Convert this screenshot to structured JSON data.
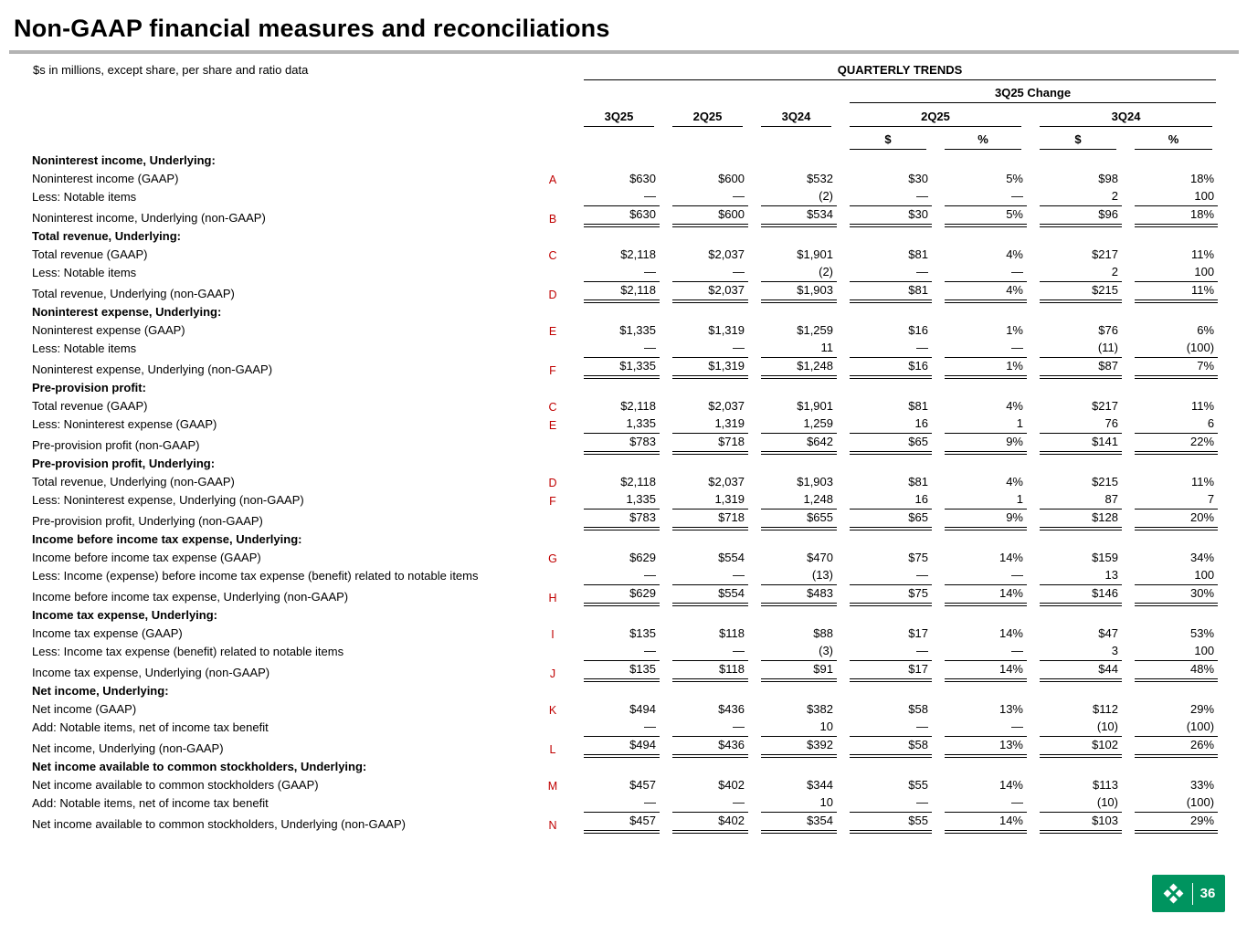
{
  "slide": {
    "title": "Non-GAAP financial measures and reconciliations",
    "subtitle": "$s in millions, except share, per share and ratio data",
    "page_number": "36"
  },
  "colors": {
    "accent_red": "#C00000",
    "brand_green": "#00945F",
    "rule_gray": "#B3B3B3",
    "text": "#000000"
  },
  "table": {
    "group_header": "QUARTERLY TRENDS",
    "change_header": "3Q25 Change",
    "periods": [
      "3Q25",
      "2Q25",
      "3Q24"
    ],
    "change_groups": [
      "2Q25",
      "3Q24"
    ],
    "change_subheaders": [
      "$",
      "%",
      "$",
      "%"
    ],
    "rows": [
      {
        "type": "section",
        "label": "Noninterest income, Underlying:"
      },
      {
        "type": "data",
        "label": "Noninterest income (GAAP)",
        "ref": "A",
        "values": [
          "$630",
          "$600",
          "$532",
          "$30",
          "5%",
          "$98",
          "18%"
        ]
      },
      {
        "type": "data",
        "label": "Less: Notable items",
        "ref": "",
        "underline": "single",
        "values": [
          "—",
          "—",
          "(2)",
          "—",
          "—",
          "2",
          "100"
        ]
      },
      {
        "type": "data",
        "label": "Noninterest income, Underlying (non-GAAP)",
        "ref": "B",
        "underline": "double",
        "values": [
          "$630",
          "$600",
          "$534",
          "$30",
          "5%",
          "$96",
          "18%"
        ]
      },
      {
        "type": "section",
        "label": "Total revenue, Underlying:"
      },
      {
        "type": "data",
        "label": "Total revenue (GAAP)",
        "ref": "C",
        "values": [
          "$2,118",
          "$2,037",
          "$1,901",
          "$81",
          "4%",
          "$217",
          "11%"
        ]
      },
      {
        "type": "data",
        "label": "Less: Notable items",
        "ref": "",
        "underline": "single",
        "values": [
          "—",
          "—",
          "(2)",
          "—",
          "—",
          "2",
          "100"
        ]
      },
      {
        "type": "data",
        "label": "Total revenue, Underlying (non-GAAP)",
        "ref": "D",
        "underline": "double",
        "values": [
          "$2,118",
          "$2,037",
          "$1,903",
          "$81",
          "4%",
          "$215",
          "11%"
        ]
      },
      {
        "type": "section",
        "label": "Noninterest expense, Underlying:"
      },
      {
        "type": "data",
        "label": "Noninterest expense (GAAP)",
        "ref": "E",
        "values": [
          "$1,335",
          "$1,319",
          "$1,259",
          "$16",
          "1%",
          "$76",
          "6%"
        ]
      },
      {
        "type": "data",
        "label": "Less: Notable items",
        "ref": "",
        "underline": "single",
        "values": [
          "—",
          "—",
          "11",
          "—",
          "—",
          "(11)",
          "(100)"
        ]
      },
      {
        "type": "data",
        "label": "Noninterest expense, Underlying (non-GAAP)",
        "ref": "F",
        "underline": "double",
        "values": [
          "$1,335",
          "$1,319",
          "$1,248",
          "$16",
          "1%",
          "$87",
          "7%"
        ]
      },
      {
        "type": "section",
        "label": "Pre-provision profit:"
      },
      {
        "type": "data",
        "label": "Total revenue (GAAP)",
        "ref": "C",
        "values": [
          "$2,118",
          "$2,037",
          "$1,901",
          "$81",
          "4%",
          "$217",
          "11%"
        ]
      },
      {
        "type": "data",
        "label": "Less: Noninterest expense (GAAP)",
        "ref": "E",
        "underline": "single",
        "values": [
          "1,335",
          "1,319",
          "1,259",
          "16",
          "1",
          "76",
          "6"
        ]
      },
      {
        "type": "data",
        "label": "Pre-provision profit (non-GAAP)",
        "ref": "",
        "underline": "double",
        "values": [
          "$783",
          "$718",
          "$642",
          "$65",
          "9%",
          "$141",
          "22%"
        ]
      },
      {
        "type": "section",
        "label": "Pre-provision profit, Underlying:"
      },
      {
        "type": "data",
        "label": "Total revenue, Underlying (non-GAAP)",
        "ref": "D",
        "values": [
          "$2,118",
          "$2,037",
          "$1,903",
          "$81",
          "4%",
          "$215",
          "11%"
        ]
      },
      {
        "type": "data",
        "label": "Less: Noninterest expense, Underlying (non-GAAP)",
        "ref": "F",
        "underline": "single",
        "values": [
          "1,335",
          "1,319",
          "1,248",
          "16",
          "1",
          "87",
          "7"
        ]
      },
      {
        "type": "data",
        "label": "Pre-provision profit, Underlying (non-GAAP)",
        "ref": "",
        "underline": "double",
        "values": [
          "$783",
          "$718",
          "$655",
          "$65",
          "9%",
          "$128",
          "20%"
        ]
      },
      {
        "type": "section",
        "label": "Income before income tax expense, Underlying:"
      },
      {
        "type": "data",
        "label": "Income before income tax expense (GAAP)",
        "ref": "G",
        "values": [
          "$629",
          "$554",
          "$470",
          "$75",
          "14%",
          "$159",
          "34%"
        ]
      },
      {
        "type": "data",
        "label": "Less: Income (expense) before income tax expense (benefit) related to notable items",
        "ref": "",
        "underline": "single",
        "values": [
          "—",
          "—",
          "(13)",
          "—",
          "—",
          "13",
          "100"
        ]
      },
      {
        "type": "data",
        "label": "Income before income tax expense, Underlying (non-GAAP)",
        "ref": "H",
        "underline": "double",
        "values": [
          "$629",
          "$554",
          "$483",
          "$75",
          "14%",
          "$146",
          "30%"
        ]
      },
      {
        "type": "section",
        "label": "Income tax expense, Underlying:"
      },
      {
        "type": "data",
        "label": "Income tax expense (GAAP)",
        "ref": "I",
        "values": [
          "$135",
          "$118",
          "$88",
          "$17",
          "14%",
          "$47",
          "53%"
        ]
      },
      {
        "type": "data",
        "label": "Less: Income tax expense (benefit) related to notable items",
        "ref": "",
        "underline": "single",
        "values": [
          "—",
          "—",
          "(3)",
          "—",
          "—",
          "3",
          "100"
        ]
      },
      {
        "type": "data",
        "label": "Income tax expense, Underlying (non-GAAP)",
        "ref": "J",
        "underline": "double",
        "values": [
          "$135",
          "$118",
          "$91",
          "$17",
          "14%",
          "$44",
          "48%"
        ]
      },
      {
        "type": "section",
        "label": "Net income, Underlying:"
      },
      {
        "type": "data",
        "label": "Net income (GAAP)",
        "ref": "K",
        "values": [
          "$494",
          "$436",
          "$382",
          "$58",
          "13%",
          "$112",
          "29%"
        ]
      },
      {
        "type": "data",
        "label": "Add: Notable items, net of income tax benefit",
        "ref": "",
        "underline": "single",
        "values": [
          "—",
          "—",
          "10",
          "—",
          "—",
          "(10)",
          "(100)"
        ]
      },
      {
        "type": "data",
        "label": "Net income, Underlying (non-GAAP)",
        "ref": "L",
        "underline": "double",
        "values": [
          "$494",
          "$436",
          "$392",
          "$58",
          "13%",
          "$102",
          "26%"
        ]
      },
      {
        "type": "section",
        "label": "Net income available to common stockholders, Underlying:"
      },
      {
        "type": "data",
        "label": "Net income available to common stockholders (GAAP)",
        "ref": "M",
        "values": [
          "$457",
          "$402",
          "$344",
          "$55",
          "14%",
          "$113",
          "33%"
        ]
      },
      {
        "type": "data",
        "label": "Add: Notable items, net of income tax benefit",
        "ref": "",
        "underline": "single",
        "values": [
          "—",
          "—",
          "10",
          "—",
          "—",
          "(10)",
          "(100)"
        ]
      },
      {
        "type": "data",
        "label": "Net income available to common stockholders, Underlying (non-GAAP)",
        "ref": "N",
        "underline": "double",
        "values": [
          "$457",
          "$402",
          "$354",
          "$55",
          "14%",
          "$103",
          "29%"
        ]
      }
    ]
  }
}
